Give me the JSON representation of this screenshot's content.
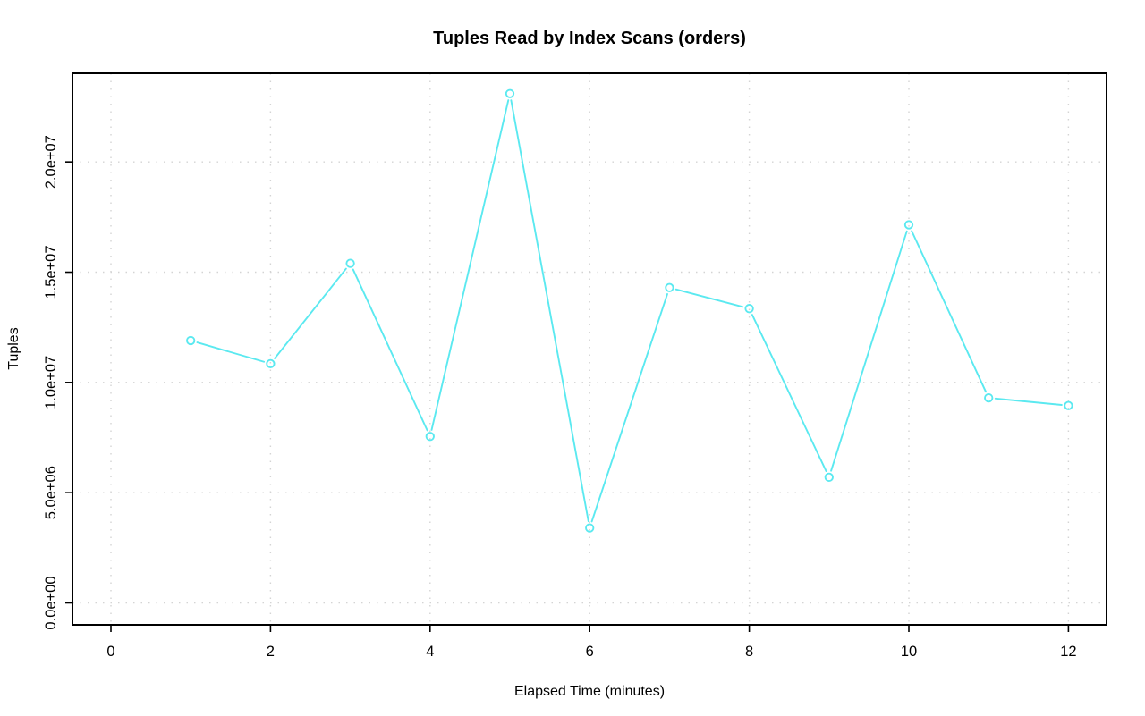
{
  "page": {
    "background": "#FFFFFF"
  },
  "chart_data": {
    "type": "line",
    "title": "Tuples Read by Index Scans (orders)",
    "xlabel": "Elapsed Time (minutes)",
    "ylabel": "Tuples",
    "x": [
      1,
      2,
      3,
      4,
      5,
      6,
      7,
      8,
      9,
      10,
      11,
      12
    ],
    "values": [
      11900000,
      10850000,
      15400000,
      7550000,
      23100000,
      3400000,
      14300000,
      13350000,
      5700000,
      17150000,
      9300000,
      8950000
    ],
    "series_name": "tuples-read-by-index-scans",
    "x_ticks": [
      {
        "value": 0,
        "label": "0"
      },
      {
        "value": 2,
        "label": "2"
      },
      {
        "value": 4,
        "label": "4"
      },
      {
        "value": 6,
        "label": "6"
      },
      {
        "value": 8,
        "label": "8"
      },
      {
        "value": 10,
        "label": "10"
      },
      {
        "value": 12,
        "label": "12"
      }
    ],
    "y_ticks": [
      {
        "value": 0,
        "label": "0.0e+00"
      },
      {
        "value": 5000000,
        "label": "5.0e+06"
      },
      {
        "value": 10000000,
        "label": "1.0e+07"
      },
      {
        "value": 15000000,
        "label": "1.5e+07"
      },
      {
        "value": 20000000,
        "label": "2.0e+07"
      }
    ],
    "xlim": [
      0,
      12
    ],
    "ylim": [
      0,
      23100000
    ],
    "grid": true,
    "grid_style": "dotted",
    "legend_position": "none",
    "marker": "open-circle",
    "line_style": "points-with-gapped-segments",
    "colors": {
      "line": "#5BE9F0",
      "grid": "#D4D4D4",
      "axis": "#000000",
      "text": "#000000",
      "background": "#FFFFFF"
    }
  }
}
